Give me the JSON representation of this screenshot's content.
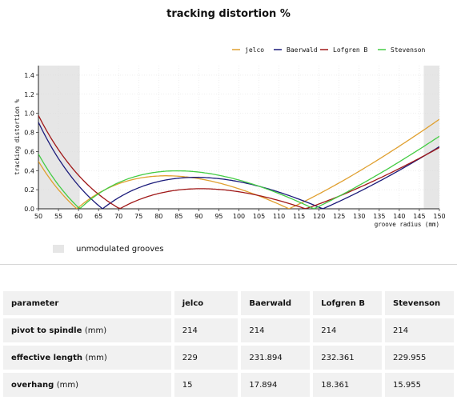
{
  "chart_data": {
    "type": "line",
    "title": "tracking distortion %",
    "xlabel": "groove radius (mm)",
    "ylabel": "tracking distortion %",
    "xlim": [
      50,
      150
    ],
    "ylim": [
      0,
      1.5
    ],
    "x_ticks": [
      "50",
      "55",
      "60",
      "65",
      "70",
      "75",
      "80",
      "85",
      "90",
      "95",
      "100",
      "105",
      "110",
      "115",
      "120",
      "125",
      "130",
      "135",
      "140",
      "145",
      "150"
    ],
    "y_ticks": [
      "0.0",
      "0.2",
      "0.4",
      "0.6",
      "0.8",
      "1.0",
      "1.2",
      "1.4"
    ],
    "unmodulated_ranges": [
      [
        50,
        60.3
      ],
      [
        146.1,
        150
      ]
    ],
    "grid": true,
    "legend_position": "top-right",
    "series": [
      {
        "name": "jelco",
        "color": "#e0a030",
        "null1": 59.6,
        "null2": 112.5
      },
      {
        "name": "Baerwald",
        "color": "#1a1a7a",
        "null1": 66.0,
        "null2": 120.9
      },
      {
        "name": "Lofgren B",
        "color": "#a01818",
        "null1": 70.3,
        "null2": 116.6
      },
      {
        "name": "Stevenson",
        "color": "#44cc44",
        "null1": 60.3,
        "null2": 118.7
      }
    ]
  },
  "legend_unmodulated": "unmodulated grooves",
  "table": {
    "headers": [
      "parameter",
      "jelco",
      "Baerwald",
      "Lofgren B",
      "Stevenson"
    ],
    "rows": [
      {
        "label": "pivot to spindle",
        "unit": "(mm)",
        "values": [
          "214",
          "214",
          "214",
          "214"
        ]
      },
      {
        "label": "effective length",
        "unit": "(mm)",
        "values": [
          "229",
          "231.894",
          "232.361",
          "229.955"
        ]
      },
      {
        "label": "overhang",
        "unit": "(mm)",
        "values": [
          "15",
          "17.894",
          "18.361",
          "15.955"
        ]
      }
    ]
  }
}
